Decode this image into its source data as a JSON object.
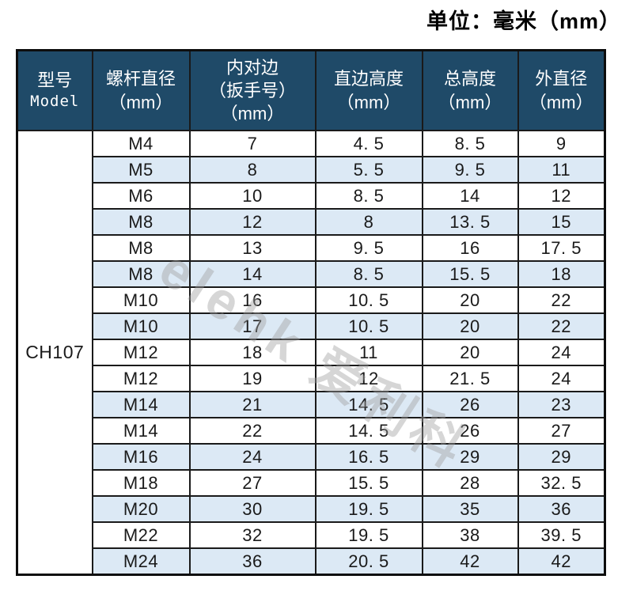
{
  "page": {
    "unit_label": "单位：毫米（mm）",
    "watermark": "elehk 爱利科"
  },
  "colors": {
    "header_bg": "#1F4A68",
    "row_shade": "#DCE9F5",
    "border": "#1A1A1A"
  },
  "table": {
    "model_value": "CH107",
    "headers": {
      "model_l1": "型号",
      "model_l2": "Model",
      "screw_l1": "螺杆直径",
      "screw_l2": "（mm）",
      "flats_l1": "内对边",
      "flats_l2": "（扳手号）",
      "flats_l3": "（mm）",
      "straight_l1": "直边高度",
      "straight_l2": "（mm）",
      "total_l1": "总高度",
      "total_l2": "（mm）",
      "outer_l1": "外直径",
      "outer_l2": "（mm）"
    },
    "rows": [
      {
        "screw": "M4",
        "flats": "7",
        "straight": "4. 5",
        "total": "8. 5",
        "outer": "9",
        "shaded": false
      },
      {
        "screw": "M5",
        "flats": "8",
        "straight": "5. 5",
        "total": "9. 5",
        "outer": "11",
        "shaded": true
      },
      {
        "screw": "M6",
        "flats": "10",
        "straight": "8. 5",
        "total": "14",
        "outer": "12",
        "shaded": false
      },
      {
        "screw": "M8",
        "flats": "12",
        "straight": "8",
        "total": "13. 5",
        "outer": "15",
        "shaded": true
      },
      {
        "screw": "M8",
        "flats": "13",
        "straight": "9. 5",
        "total": "16",
        "outer": "17. 5",
        "shaded": false
      },
      {
        "screw": "M8",
        "flats": "14",
        "straight": "8. 5",
        "total": "15. 5",
        "outer": "18",
        "shaded": true
      },
      {
        "screw": "M10",
        "flats": "16",
        "straight": "10. 5",
        "total": "20",
        "outer": "22",
        "shaded": false
      },
      {
        "screw": "M10",
        "flats": "17",
        "straight": "10. 5",
        "total": "20",
        "outer": "22",
        "shaded": true
      },
      {
        "screw": "M12",
        "flats": "18",
        "straight": "11",
        "total": "20",
        "outer": "24",
        "shaded": false
      },
      {
        "screw": "M12",
        "flats": "19",
        "straight": "12",
        "total": "21. 5",
        "outer": "24",
        "shaded": false
      },
      {
        "screw": "M14",
        "flats": "21",
        "straight": "14. 5",
        "total": "26",
        "outer": "23",
        "shaded": true
      },
      {
        "screw": "M14",
        "flats": "22",
        "straight": "14. 5",
        "total": "26",
        "outer": "27",
        "shaded": false
      },
      {
        "screw": "M16",
        "flats": "24",
        "straight": "16. 5",
        "total": "29",
        "outer": "29",
        "shaded": true
      },
      {
        "screw": "M18",
        "flats": "27",
        "straight": "15. 5",
        "total": "28",
        "outer": "32. 5",
        "shaded": false
      },
      {
        "screw": "M20",
        "flats": "30",
        "straight": "19. 5",
        "total": "35",
        "outer": "36",
        "shaded": true
      },
      {
        "screw": "M22",
        "flats": "32",
        "straight": "19. 5",
        "total": "38",
        "outer": "39. 5",
        "shaded": false
      },
      {
        "screw": "M24",
        "flats": "36",
        "straight": "20. 5",
        "total": "42",
        "outer": "42",
        "shaded": true
      }
    ]
  }
}
